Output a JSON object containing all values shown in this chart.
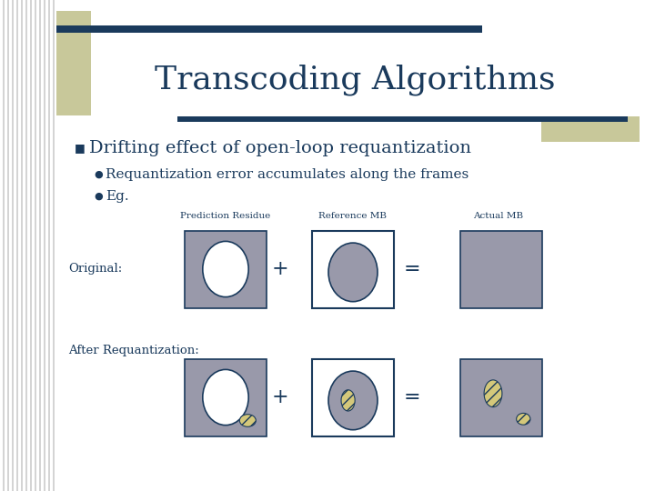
{
  "title": "Transcoding Algorithms",
  "title_color": "#1a3a5c",
  "bg_color": "#ffffff",
  "header_bar_color": "#1a3a5c",
  "accent_color": "#c8c89a",
  "bullet1": "Drifting effect of open-loop requantization",
  "sub_bullet1": "Requantization error accumulates along the frames",
  "sub_bullet2": "Eg.",
  "label_pred": "Prediction Residue",
  "label_ref": "Reference MB",
  "label_actual": "Actual MB",
  "label_original": "Original:",
  "label_after": "After Requantization:",
  "gray_box": "#9999aa",
  "white_box": "#ffffff",
  "dark_outline": "#1a3a5c",
  "ellipse_white": "#ffffff",
  "ellipse_gray": "#9999aa",
  "hatch_color": "#d4c87a",
  "text_color": "#1a3a5c",
  "stripe_color": "#cccccc"
}
